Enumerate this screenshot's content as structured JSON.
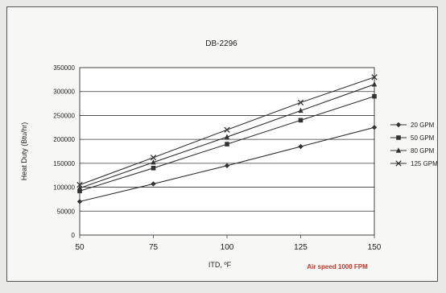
{
  "chart_data": {
    "type": "line",
    "title": "DB-2296",
    "xlabel": "ITD, ºF",
    "ylabel": "Heat Duty (Btu/hr)",
    "x": [
      50,
      75,
      100,
      125,
      150
    ],
    "xlim": [
      50,
      150
    ],
    "ylim": [
      0,
      350000
    ],
    "y_ticks": [
      "0",
      "50000",
      "100000",
      "150000",
      "200000",
      "250000",
      "300000",
      "350000"
    ],
    "x_ticks": [
      "50",
      "75",
      "100",
      "125",
      "150"
    ],
    "grid": "horizontal",
    "legend": "right",
    "annotation": "Air speed 1000 FPM",
    "annotation_color": "#c0392b",
    "series": [
      {
        "name": "20 GPM",
        "marker": "diamond",
        "values": [
          70000,
          107000,
          145000,
          185000,
          225000
        ]
      },
      {
        "name": "50 GPM",
        "marker": "square",
        "values": [
          92000,
          140000,
          190000,
          240000,
          290000
        ]
      },
      {
        "name": "80 GPM",
        "marker": "triangle",
        "values": [
          98000,
          152000,
          205000,
          260000,
          315000
        ]
      },
      {
        "name": "125 GPM",
        "marker": "x",
        "values": [
          105000,
          162000,
          220000,
          277000,
          330000
        ]
      }
    ]
  }
}
